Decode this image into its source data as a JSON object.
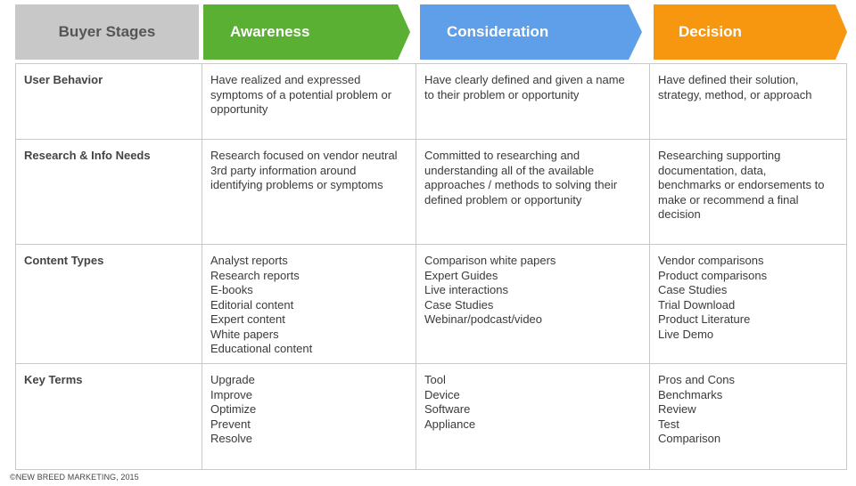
{
  "header": {
    "stages_label": "Buyer Stages",
    "stages": [
      "Awareness",
      "Consideration",
      "Decision"
    ]
  },
  "colors": {
    "awareness": "#5ab033",
    "consideration": "#5f9ee8",
    "decision": "#f7960f",
    "label_header": "#c8c8c8"
  },
  "rows": [
    {
      "label": "User Behavior",
      "cells": [
        [
          "Have realized and expressed",
          "symptoms of a potential problem or",
          "opportunity"
        ],
        [
          "Have clearly defined and given a name",
          "to their problem or opportunity"
        ],
        [
          "Have defined their solution,",
          "strategy, method, or approach"
        ]
      ]
    },
    {
      "label": "Research & Info Needs",
      "cells": [
        [
          "Research focused on vendor neutral",
          "3rd party information around",
          "identifying problems or symptoms"
        ],
        [
          "Committed to researching and",
          "understanding all of the available",
          "approaches / methods to solving their",
          "defined problem or opportunity"
        ],
        [
          "Researching supporting",
          "documentation, data,",
          "benchmarks or endorsements to",
          "make or recommend a final",
          "decision"
        ]
      ]
    },
    {
      "label": "Content Types",
      "cells": [
        [
          "Analyst reports",
          "Research reports",
          "E-books",
          "Editorial content",
          "Expert content",
          "White papers",
          "Educational content"
        ],
        [
          "Comparison white papers",
          "Expert Guides",
          "Live interactions",
          "Case Studies",
          "Webinar/podcast/video"
        ],
        [
          "Vendor comparisons",
          "Product comparisons",
          "Case Studies",
          "Trial Download",
          "Product Literature",
          "Live Demo"
        ]
      ]
    },
    {
      "label": "Key Terms",
      "cells": [
        [
          "Upgrade",
          "Improve",
          "Optimize",
          "Prevent",
          "Resolve"
        ],
        [
          "Tool",
          "Device",
          "Software",
          "Appliance"
        ],
        [
          "Pros and Cons",
          "Benchmarks",
          "Review",
          "Test",
          "Comparison"
        ]
      ]
    }
  ],
  "footer": "©NEW BREED MARKETING, 2015"
}
